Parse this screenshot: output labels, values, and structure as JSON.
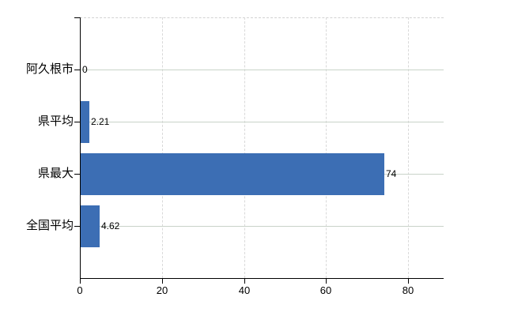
{
  "chart_data": {
    "type": "bar",
    "orientation": "horizontal",
    "categories": [
      "阿久根市",
      "県平均",
      "県最大",
      "全国平均"
    ],
    "values": [
      0,
      2.21,
      74,
      4.62
    ],
    "value_labels": [
      "0",
      "2.21",
      "74",
      "4.62"
    ],
    "x_ticks": [
      0,
      20,
      40,
      60,
      80
    ],
    "x_tick_labels": [
      "0",
      "20",
      "40",
      "60",
      "80"
    ],
    "xlim": [
      0,
      88.7
    ],
    "grid": {
      "vertical_style": "dashed",
      "horizontal_style": "solid",
      "top_boundary_style": "dashed"
    },
    "colors": {
      "bar": "#3c6eb4",
      "axis": "#000000",
      "grid_vertical": "#d9d9d9",
      "grid_horizontal": "#c9d3c9",
      "grid_top": "#d2d2d2",
      "text": "#000000",
      "background": "#ffffff"
    },
    "legend": "none",
    "title": ""
  }
}
